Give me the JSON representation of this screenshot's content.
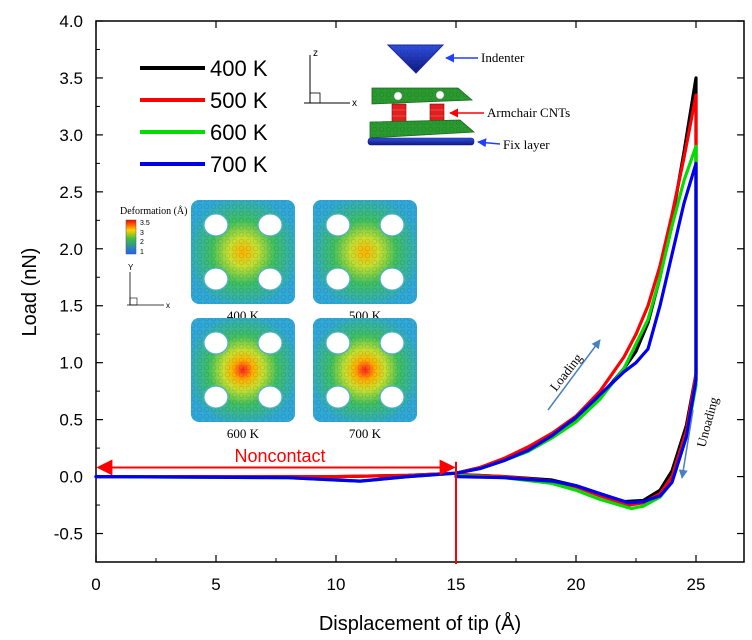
{
  "chart_data": {
    "type": "line",
    "xlabel": "Displacement of tip (Å)",
    "ylabel": "Load (nN)",
    "xlim": [
      0,
      27
    ],
    "ylim": [
      -0.75,
      4.0
    ],
    "x_ticks": [
      "0",
      "5",
      "10",
      "15",
      "20",
      "25"
    ],
    "y_ticks": [
      "-0.5",
      "0.0",
      "0.5",
      "1.0",
      "1.5",
      "2.0",
      "2.5",
      "3.0",
      "3.5",
      "4.0"
    ],
    "legend_position": "top-left",
    "series": [
      {
        "name": "400 K",
        "color": "#000000",
        "loading": [
          [
            0,
            0
          ],
          [
            10,
            0
          ],
          [
            13,
            0.01
          ],
          [
            15,
            0.03
          ],
          [
            16,
            0.08
          ],
          [
            17,
            0.15
          ],
          [
            18,
            0.24
          ],
          [
            19,
            0.36
          ],
          [
            20,
            0.5
          ],
          [
            21,
            0.7
          ],
          [
            22,
            0.95
          ],
          [
            22.5,
            1.1
          ],
          [
            23,
            1.35
          ],
          [
            23.5,
            1.75
          ],
          [
            24,
            2.25
          ],
          [
            24.5,
            2.85
          ],
          [
            25,
            3.5
          ]
        ],
        "unloading": [
          [
            25,
            3.5
          ],
          [
            25,
            0.9
          ],
          [
            24.6,
            0.45
          ],
          [
            24,
            0.05
          ],
          [
            23.5,
            -0.12
          ],
          [
            22.8,
            -0.21
          ],
          [
            22,
            -0.22
          ],
          [
            21,
            -0.15
          ],
          [
            20,
            -0.08
          ],
          [
            19,
            -0.03
          ],
          [
            17,
            0.0
          ],
          [
            15,
            0.02
          ]
        ]
      },
      {
        "name": "500 K",
        "color": "#ff0000",
        "loading": [
          [
            0,
            0
          ],
          [
            10,
            0
          ],
          [
            13,
            0.01
          ],
          [
            15,
            0.03
          ],
          [
            16,
            0.08
          ],
          [
            17,
            0.16
          ],
          [
            18,
            0.26
          ],
          [
            19,
            0.38
          ],
          [
            20,
            0.53
          ],
          [
            21,
            0.75
          ],
          [
            22,
            1.05
          ],
          [
            22.5,
            1.25
          ],
          [
            23,
            1.5
          ],
          [
            23.5,
            1.85
          ],
          [
            24,
            2.3
          ],
          [
            24.5,
            2.8
          ],
          [
            25,
            3.35
          ]
        ],
        "unloading": [
          [
            25,
            3.35
          ],
          [
            25,
            0.9
          ],
          [
            24.6,
            0.4
          ],
          [
            24,
            0.0
          ],
          [
            23.5,
            -0.15
          ],
          [
            22.8,
            -0.23
          ],
          [
            22.2,
            -0.25
          ],
          [
            21,
            -0.17
          ],
          [
            20,
            -0.09
          ],
          [
            19,
            -0.04
          ],
          [
            17,
            0.0
          ],
          [
            15,
            0.02
          ]
        ]
      },
      {
        "name": "600 K",
        "color": "#00dd00",
        "loading": [
          [
            0,
            0
          ],
          [
            8,
            -0.01
          ],
          [
            10,
            -0.03
          ],
          [
            11,
            -0.04
          ],
          [
            12,
            -0.02
          ],
          [
            13,
            0.0
          ],
          [
            15,
            0.03
          ],
          [
            16,
            0.07
          ],
          [
            17,
            0.14
          ],
          [
            18,
            0.22
          ],
          [
            19,
            0.34
          ],
          [
            20,
            0.48
          ],
          [
            21,
            0.68
          ],
          [
            22,
            0.95
          ],
          [
            23,
            1.38
          ],
          [
            23.5,
            1.75
          ],
          [
            24,
            2.2
          ],
          [
            24.5,
            2.6
          ],
          [
            25,
            2.9
          ]
        ],
        "unloading": [
          [
            25,
            2.9
          ],
          [
            25,
            0.8
          ],
          [
            24.6,
            0.35
          ],
          [
            24,
            -0.05
          ],
          [
            23.5,
            -0.18
          ],
          [
            22.8,
            -0.26
          ],
          [
            22.3,
            -0.28
          ],
          [
            21,
            -0.2
          ],
          [
            20,
            -0.12
          ],
          [
            19,
            -0.06
          ],
          [
            17,
            -0.01
          ],
          [
            15,
            0.01
          ]
        ]
      },
      {
        "name": "700 K",
        "color": "#0000ee",
        "loading": [
          [
            0,
            0
          ],
          [
            8,
            -0.01
          ],
          [
            10,
            -0.03
          ],
          [
            11,
            -0.04
          ],
          [
            12,
            -0.02
          ],
          [
            13,
            0.0
          ],
          [
            15,
            0.03
          ],
          [
            16,
            0.07
          ],
          [
            17,
            0.14
          ],
          [
            18,
            0.23
          ],
          [
            19,
            0.36
          ],
          [
            20,
            0.52
          ],
          [
            21,
            0.72
          ],
          [
            22,
            0.92
          ],
          [
            22.5,
            1.0
          ],
          [
            23,
            1.12
          ],
          [
            23.5,
            1.5
          ],
          [
            24,
            1.95
          ],
          [
            24.5,
            2.4
          ],
          [
            25,
            2.75
          ]
        ],
        "unloading": [
          [
            25,
            2.75
          ],
          [
            25,
            0.85
          ],
          [
            24.6,
            0.35
          ],
          [
            24,
            -0.05
          ],
          [
            23.5,
            -0.17
          ],
          [
            22.8,
            -0.22
          ],
          [
            22.2,
            -0.23
          ],
          [
            21,
            -0.15
          ],
          [
            20,
            -0.08
          ],
          [
            19,
            -0.04
          ],
          [
            17,
            -0.01
          ],
          [
            15,
            0.0
          ]
        ]
      }
    ],
    "annotations": {
      "noncontact": "Noncontact",
      "noncontact_x": 15,
      "loading": "Loading",
      "unloading": "Unoading",
      "indenter": "Indenter",
      "armchair": "Armchair CNTs",
      "fix_layer": "Fix layer",
      "deformation_title": "Deformation (Å)",
      "colorbar_ticks": [
        "3.5",
        "3",
        "2",
        "1"
      ],
      "inset_labels": [
        "400 K",
        "500 K",
        "600 K",
        "700 K"
      ],
      "axis_z": "z",
      "axis_x": "x",
      "inset_axis_y": "Y",
      "inset_axis_x": "x"
    }
  }
}
